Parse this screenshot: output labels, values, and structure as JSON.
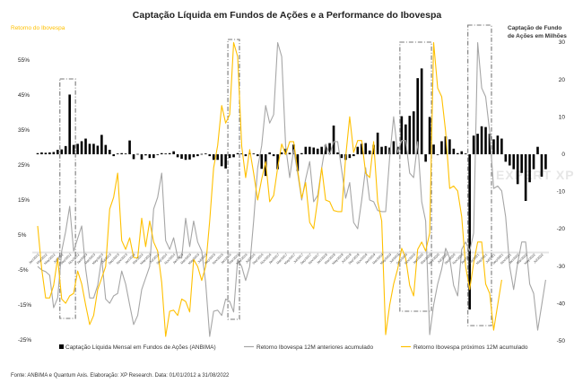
{
  "chart_data": {
    "type": "bar+line",
    "title": "Captação Líquida em Fundos de Ações e a Performance do Ibovespa",
    "ylabel_left": "Retorno do Ibovespa",
    "ylabel_right": [
      "Captação de Fundo",
      "de Ações em Milhões"
    ],
    "left_ticks": [
      "55%",
      "45%",
      "35%",
      "25%",
      "15%",
      "5%",
      "-5%",
      "-15%",
      "-25%"
    ],
    "left_tick_values": [
      55,
      45,
      35,
      25,
      15,
      5,
      -5,
      -15,
      -25
    ],
    "right_ticks": [
      "30",
      "20",
      "10",
      "0",
      "-10",
      "-20",
      "-30",
      "-40",
      "-50"
    ],
    "right_tick_values": [
      30,
      20,
      10,
      0,
      -10,
      -20,
      -30,
      -40,
      -50
    ],
    "ylim_left": [
      -25,
      55
    ],
    "ylim_right": [
      -50,
      30
    ],
    "period": "Jan/2012 – Aug/2022 (monthly)",
    "x_tick_labels": [
      "Jan/2012",
      "Mar/2012",
      "May/2012",
      "Jul/2012",
      "Sep/2012",
      "Nov/2012",
      "Jan/2013",
      "Mar/2013",
      "May/2013",
      "Jul/2013",
      "Sep/2013",
      "Nov/2013",
      "Jan/2014",
      "Mar/2014",
      "May/2014",
      "Jul/2014",
      "Sep/2014",
      "Nov/2014",
      "Jan/2015",
      "Mar/2015",
      "May/2015",
      "Jul/2015",
      "Sep/2015",
      "Nov/2015",
      "Jan/2016",
      "Mar/2016",
      "May/2016",
      "Jul/2016",
      "Sep/2016",
      "Nov/2016",
      "Jan/2017",
      "Mar/2017",
      "May/2017",
      "Jul/2017",
      "Sep/2017",
      "Nov/2017",
      "Jan/2018",
      "Mar/2018",
      "May/2018",
      "Jul/2018",
      "Sep/2018",
      "Nov/2018",
      "Jan/2019",
      "Mar/2019",
      "May/2019",
      "Jul/2019",
      "Sep/2019",
      "Nov/2019",
      "Jan/2020",
      "Mar/2020",
      "May/2020",
      "Jul/2020",
      "Sep/2020",
      "Nov/2020",
      "Jan/2021",
      "Mar/2021",
      "May/2021",
      "Jul/2021",
      "Sep/2021",
      "Nov/2021",
      "Jan/2022",
      "Mar/2022",
      "May/2022",
      "Jul/2022"
    ],
    "series": [
      {
        "name": "Captação Líquida Mensal em Fundos de Ações (ANBIMA)",
        "type": "bar",
        "axis": "right",
        "color": "#000000",
        "values": [
          0.3,
          0.5,
          0.4,
          0.5,
          0.6,
          1.2,
          1.3,
          2.2,
          16,
          2.5,
          2.8,
          3.5,
          4.2,
          2.8,
          2.8,
          2.3,
          5.2,
          2.5,
          1.2,
          -0.5,
          0.2,
          0.3,
          0.2,
          3.7,
          -1.3,
          0.1,
          -1.4,
          -0.3,
          -1,
          -1,
          -0.2,
          0.3,
          0.2,
          0.3,
          0.8,
          -0.8,
          -1.2,
          -1.5,
          -1.4,
          -0.8,
          -0.5,
          0.1,
          0.2,
          -0.5,
          -1.5,
          -1.5,
          -3.2,
          -3.8,
          -1,
          -0.8,
          0.3,
          0.2,
          -0.5,
          0.3,
          0.2,
          -0.5,
          -3.9,
          -5.8,
          0.5,
          -0.5,
          -4,
          0.5,
          1.5,
          0.4,
          2.6,
          -4.5,
          0.3,
          2,
          2,
          1.8,
          1.5,
          2,
          2.5,
          3,
          7.7,
          0.5,
          -1,
          -1.5,
          -1,
          -0.5,
          2,
          2.8,
          3,
          1,
          2.5,
          5.8,
          2,
          2.2,
          1.8,
          3.5,
          2,
          10.2,
          8,
          10.3,
          11.5,
          20.4,
          23,
          -2,
          10,
          2.6,
          0,
          3.5,
          4.8,
          4,
          1.5,
          0.3,
          0.8,
          0.2,
          -41.6,
          5,
          5.5,
          7.5,
          7.3,
          5.5,
          4,
          5,
          4.2,
          -2,
          -3,
          -4,
          -8,
          -5,
          -12.5,
          -7.5,
          -4,
          2,
          -6,
          -4
        ]
      },
      {
        "name": "Retorno Ibovespa 12M anteriores acumulado",
        "type": "line",
        "axis": "left",
        "color": "#A6A6A6",
        "start_index": 0,
        "values": [
          -4,
          -5,
          -5.5,
          -6.5,
          -15.8,
          -13,
          0.4,
          6,
          13.2,
          0.4,
          4,
          7.6,
          -4.7,
          -13,
          -13,
          -9.4,
          -1.6,
          -13.3,
          -14.5,
          -12.4,
          -11.7,
          -5.3,
          -9,
          -15,
          -20.6,
          -18,
          -10.6,
          -7.3,
          -4,
          12.4,
          15.8,
          22.7,
          3.4,
          0.9,
          4.2,
          -1.4,
          -1.6,
          9.8,
          1.7,
          9,
          3,
          0.4,
          -8.6,
          -24,
          -16.8,
          -16.5,
          -18,
          -13.3,
          -14,
          -17,
          -2,
          -4,
          -8,
          -4,
          9,
          24.2,
          30.6,
          42,
          37,
          39.4,
          60,
          56,
          30.4,
          21.4,
          29.4,
          22.7,
          15,
          21,
          26,
          14.5,
          16.3,
          24.2,
          31,
          28,
          31.7,
          31.7,
          23.5,
          15.5,
          20,
          8.6,
          6.8,
          15,
          24.2,
          15,
          14.5,
          12,
          11.7,
          11.7,
          27.3,
          38.8,
          28.6,
          32,
          32,
          22.7,
          21.4,
          31.7,
          14.5,
          9,
          -23.5,
          -15,
          -9,
          -4.7,
          1.2,
          -1.6,
          -9.4,
          -12.4,
          0.9,
          3,
          0.4,
          5.5,
          60,
          47,
          44.5,
          34.5,
          18.3,
          19,
          17.6,
          10.2,
          -4,
          -10.6,
          -3,
          3,
          3,
          -9,
          -11.7,
          -22.2,
          -15,
          -7.8
        ]
      },
      {
        "name": "Retorno Ibovespa próximos 12M acumulado",
        "type": "line",
        "axis": "left",
        "color": "#FFC000",
        "start_index": 0,
        "values": [
          7.6,
          -4.7,
          -13,
          -13,
          -9.4,
          -1.6,
          -13.3,
          -14.5,
          -12.4,
          -11.7,
          -5.3,
          -9,
          -15,
          -20.6,
          -18,
          -10.6,
          -7.3,
          -4,
          12.4,
          15.8,
          22.7,
          3.4,
          0.9,
          4.2,
          -1.4,
          -1.6,
          9.8,
          1.7,
          9,
          3,
          0.4,
          -8.6,
          -24,
          -16.8,
          -16.5,
          -18,
          -13.3,
          -14,
          -17,
          -2,
          -4,
          -8,
          -4,
          9,
          24.2,
          30.6,
          42,
          37,
          39.4,
          60,
          56,
          30.4,
          21.4,
          29.4,
          22.7,
          15,
          21,
          26,
          14.5,
          16.3,
          24.2,
          31,
          28,
          31.7,
          31.7,
          23.5,
          15.5,
          20,
          8.6,
          6.8,
          15,
          24.2,
          15,
          14.5,
          12,
          11.7,
          11.7,
          27.3,
          38.8,
          28.6,
          32,
          32,
          22.7,
          21.4,
          31.7,
          14.5,
          9,
          -23.5,
          -15,
          -9,
          -4.7,
          1.2,
          -1.6,
          -9.4,
          -12.4,
          0.9,
          3,
          0.4,
          5.5,
          60,
          47,
          44.5,
          34.5,
          18.3,
          19,
          17.6,
          10.2,
          -4,
          -10.6,
          -3,
          3,
          3,
          -9,
          -11.7,
          -22.2,
          -15,
          -7.8
        ]
      }
    ],
    "highlight_boxes_month_ranges": [
      [
        6,
        9
      ],
      [
        48,
        50
      ],
      [
        91,
        98
      ],
      [
        108,
        113
      ]
    ],
    "legend_position": "bottom",
    "grid": false
  },
  "legend": {
    "bars": "Captação Líquida Mensal em Fundos de Ações (ANBIMA)",
    "gray": "Retorno Ibovespa 12M anteriores acumulado",
    "orange": "Retorno Ibovespa próximos 12M acumulado"
  },
  "watermark": "EXPERT XP",
  "footer": "Fonte: ANBIMA e Quantum Axis. Elaboração: XP Research. Data: 01/01/2012 a 31/08/2022",
  "colors": {
    "orange": "#FFC000",
    "gray": "#A6A6A6",
    "bar": "#000000",
    "title_left": "#FFC000"
  }
}
